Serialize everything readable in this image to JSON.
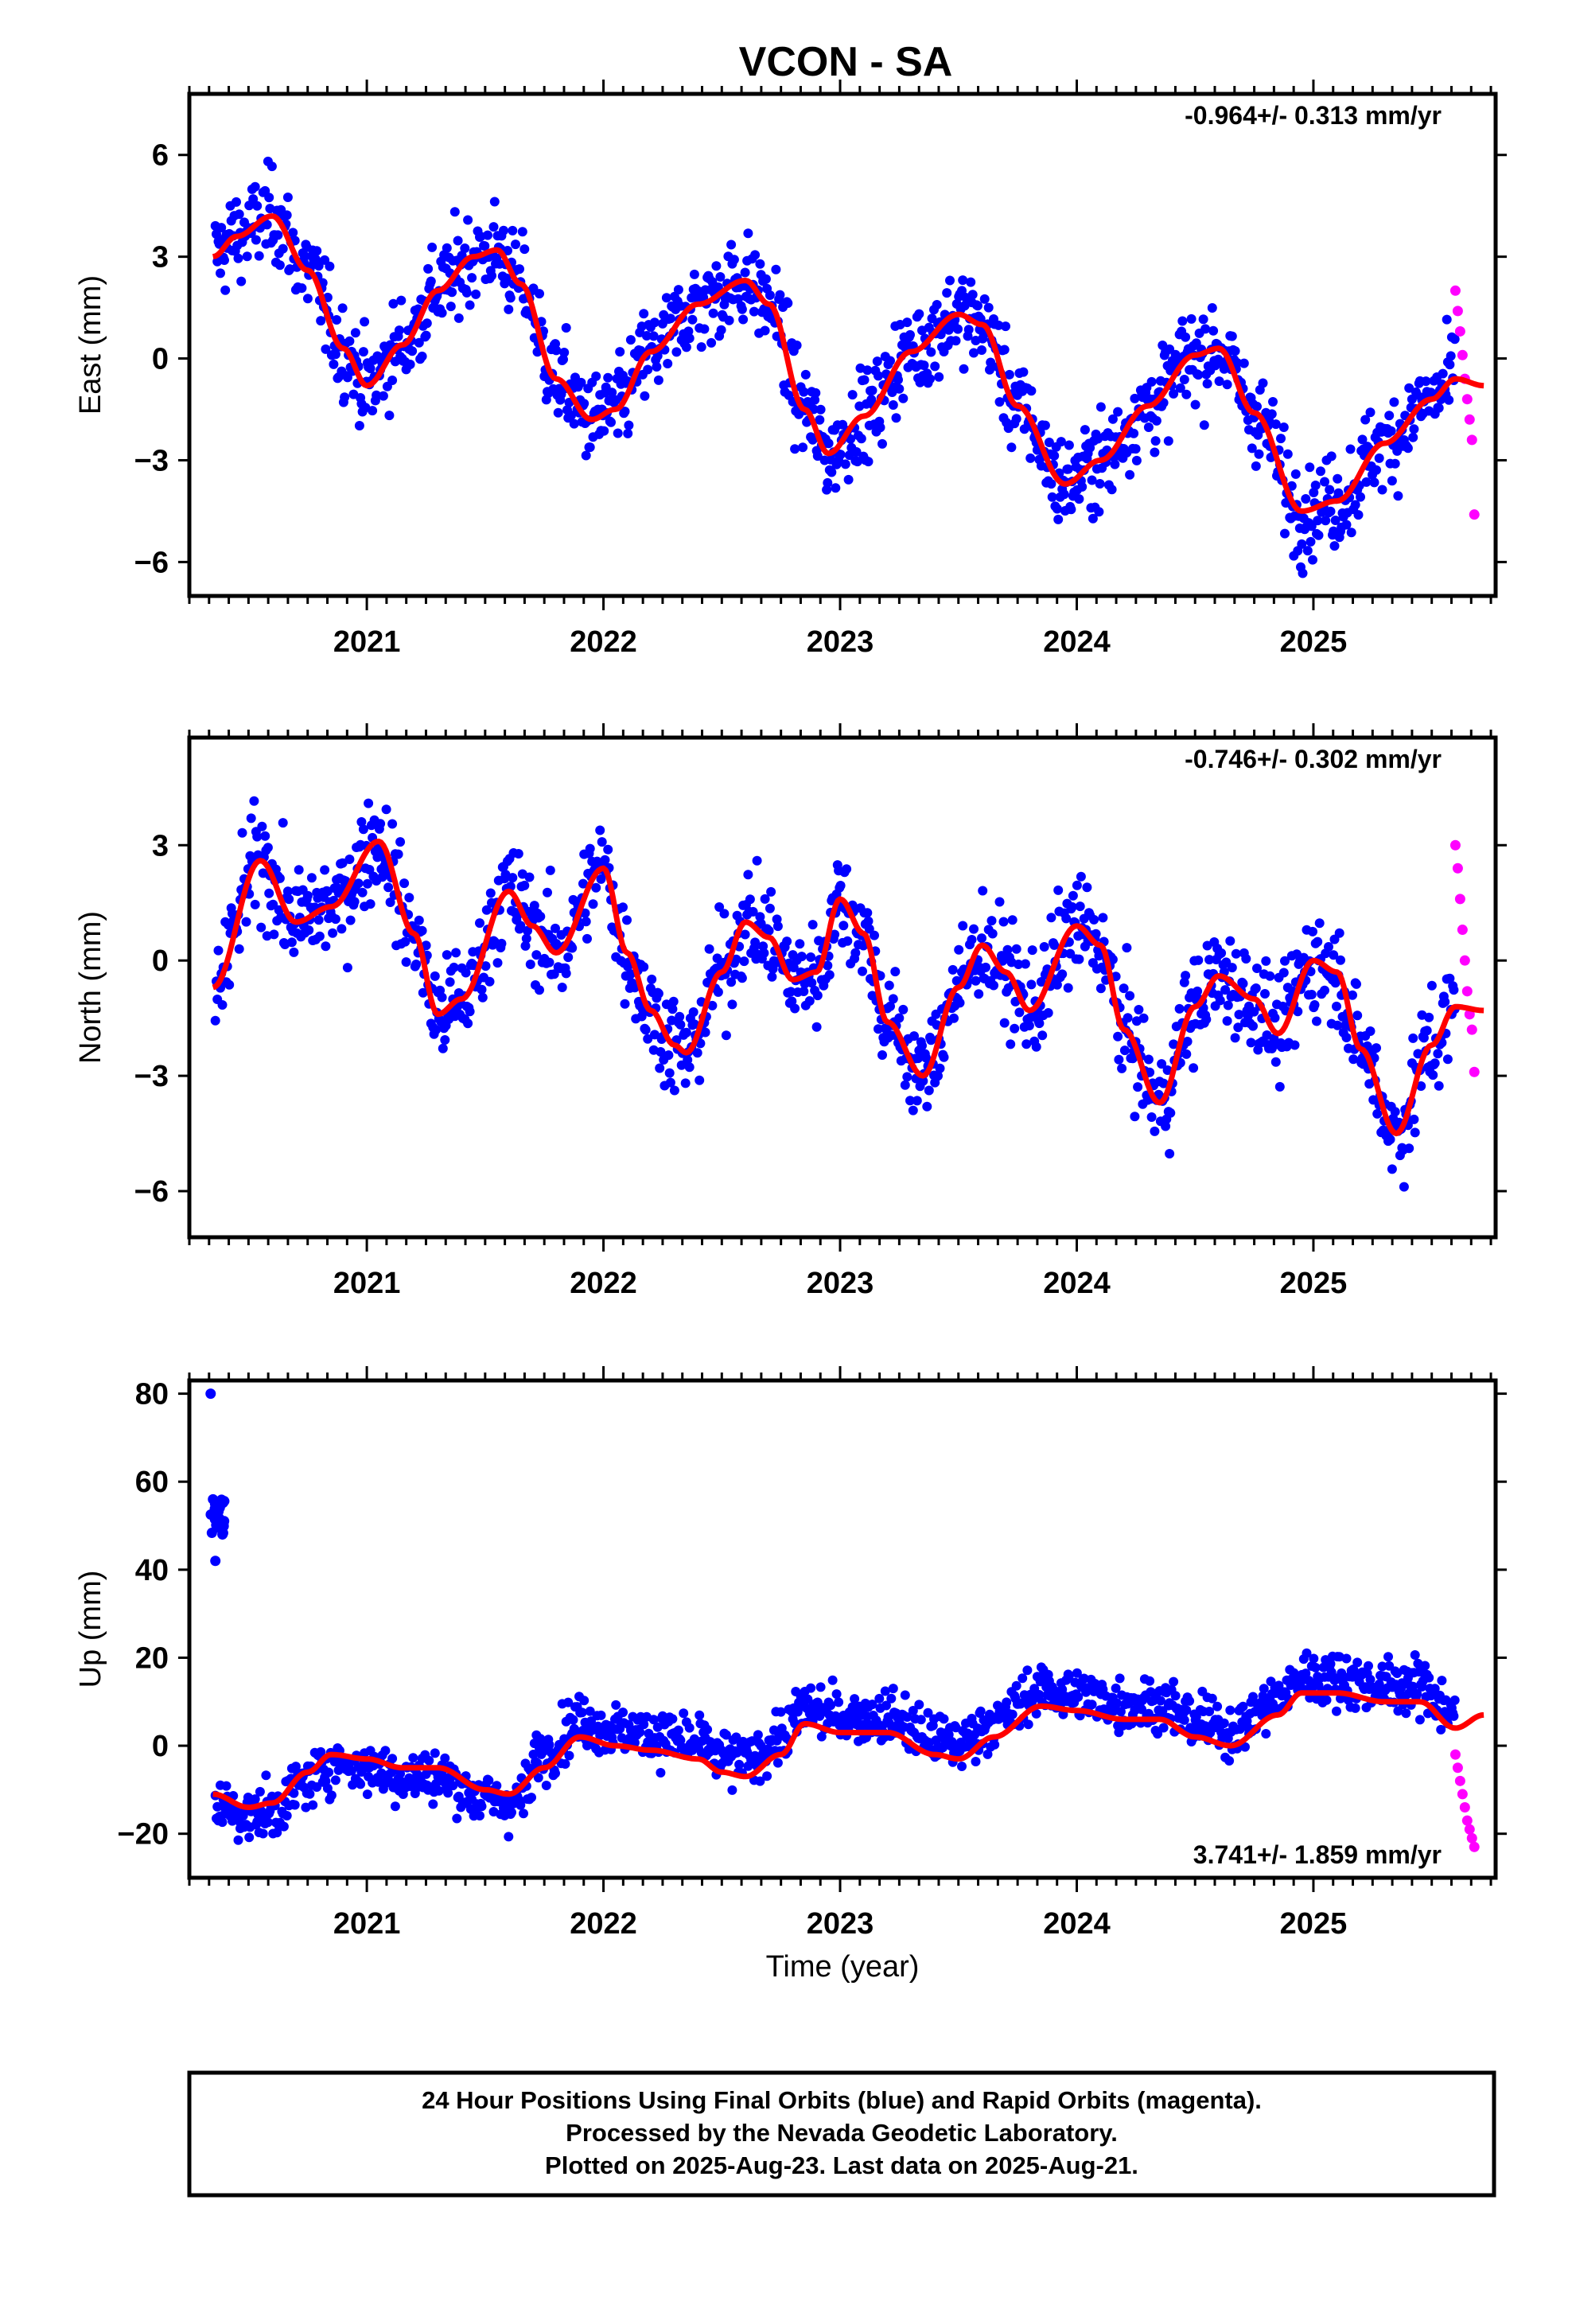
{
  "chart_data": {
    "type": "scatter",
    "title": "VCON - SA",
    "xlabel": "Time (year)",
    "x_ticks": [
      "2021",
      "2022",
      "2023",
      "2024",
      "2025"
    ],
    "x_range": [
      2020.25,
      2025.77
    ],
    "colors": {
      "final": "#0000ff",
      "rapid": "#ff00ff",
      "fit": "#ff0000"
    },
    "panels": [
      {
        "ylabel": "East (mm)",
        "ylim": [
          -7.0,
          7.8
        ],
        "yticks": [
          -6,
          -3,
          0,
          3,
          6
        ],
        "ytick_labels": [
          "−6",
          "−3",
          "0",
          "3",
          "6"
        ],
        "rate": "-0.964+/- 0.313 mm/yr",
        "rate_position": "top-right",
        "fit": {
          "x": [
            2020.35,
            2020.45,
            2020.6,
            2020.75,
            2020.9,
            2021.0,
            2021.15,
            2021.3,
            2021.45,
            2021.55,
            2021.65,
            2021.8,
            2021.95,
            2022.05,
            2022.2,
            2022.4,
            2022.6,
            2022.7,
            2022.85,
            2022.95,
            2023.1,
            2023.3,
            2023.5,
            2023.6,
            2023.75,
            2023.95,
            2024.1,
            2024.3,
            2024.5,
            2024.6,
            2024.75,
            2024.95,
            2025.1,
            2025.3,
            2025.5,
            2025.6,
            2025.72
          ],
          "y": [
            3.0,
            3.6,
            4.2,
            2.6,
            0.3,
            -0.8,
            0.4,
            2.0,
            3.0,
            3.2,
            2.2,
            -0.6,
            -1.8,
            -1.5,
            0.2,
            1.6,
            2.3,
            1.6,
            -1.5,
            -2.8,
            -1.7,
            0.2,
            1.3,
            1.0,
            -1.4,
            -3.7,
            -3.0,
            -1.4,
            0.1,
            0.3,
            -1.6,
            -4.5,
            -4.2,
            -2.5,
            -1.2,
            -0.6,
            -0.8
          ]
        },
        "rapid": {
          "x": [
            2025.6,
            2025.61,
            2025.62,
            2025.63,
            2025.64,
            2025.65,
            2025.66,
            2025.67,
            2025.68
          ],
          "y": [
            2.0,
            1.4,
            0.8,
            0.1,
            -0.6,
            -1.2,
            -1.8,
            -2.4,
            -4.6
          ]
        }
      },
      {
        "ylabel": "North (mm)",
        "ylim": [
          -7.2,
          5.8
        ],
        "yticks": [
          -6,
          -3,
          0,
          3
        ],
        "ytick_labels": [
          "−6",
          "−3",
          "0",
          "3"
        ],
        "rate": "-0.746+/- 0.302 mm/yr",
        "rate_position": "top-right",
        "fit": {
          "x": [
            2020.35,
            2020.55,
            2020.7,
            2020.85,
            2021.05,
            2021.2,
            2021.3,
            2021.4,
            2021.6,
            2021.7,
            2021.8,
            2022.0,
            2022.1,
            2022.2,
            2022.3,
            2022.35,
            2022.5,
            2022.6,
            2022.7,
            2022.8,
            2022.9,
            2023.0,
            2023.1,
            2023.2,
            2023.35,
            2023.5,
            2023.6,
            2023.7,
            2023.8,
            2024.0,
            2024.1,
            2024.2,
            2024.35,
            2024.5,
            2024.6,
            2024.75,
            2024.85,
            2025.0,
            2025.1,
            2025.2,
            2025.35,
            2025.5,
            2025.6,
            2025.72
          ],
          "y": [
            -0.7,
            2.6,
            1.0,
            1.4,
            3.1,
            0.7,
            -1.4,
            -1.0,
            1.8,
            0.9,
            0.2,
            2.4,
            0.2,
            -1.3,
            -2.2,
            -2.4,
            -0.3,
            1.0,
            0.6,
            -0.5,
            -0.3,
            1.6,
            0.7,
            -1.6,
            -3.0,
            -0.7,
            0.4,
            -0.3,
            -1.3,
            0.9,
            0.4,
            -1.8,
            -3.7,
            -1.2,
            -0.4,
            -1.0,
            -1.9,
            0.0,
            -0.3,
            -2.3,
            -4.5,
            -2.2,
            -1.2,
            -1.3
          ]
        },
        "rapid": {
          "x": [
            2025.6,
            2025.61,
            2025.62,
            2025.63,
            2025.64,
            2025.65,
            2025.66,
            2025.67,
            2025.68
          ],
          "y": [
            3.0,
            2.4,
            1.6,
            0.8,
            0.0,
            -0.8,
            -1.4,
            -1.8,
            -2.9
          ]
        }
      },
      {
        "ylabel": "Up (mm)",
        "ylim": [
          -30,
          83
        ],
        "yticks": [
          -20,
          0,
          20,
          40,
          60,
          80
        ],
        "ytick_labels": [
          "−20",
          "0",
          "20",
          "40",
          "60",
          "80"
        ],
        "rate": "3.741+/- 1.859 mm/yr",
        "rate_position": "bottom-right",
        "fit": {
          "x": [
            2020.35,
            2020.5,
            2020.6,
            2020.75,
            2020.85,
            2021.0,
            2021.15,
            2021.3,
            2021.5,
            2021.6,
            2021.75,
            2021.9,
            2022.05,
            2022.2,
            2022.4,
            2022.5,
            2022.6,
            2022.75,
            2022.85,
            2023.0,
            2023.2,
            2023.4,
            2023.5,
            2023.65,
            2023.85,
            2024.0,
            2024.2,
            2024.35,
            2024.5,
            2024.65,
            2024.85,
            2024.95,
            2025.1,
            2025.3,
            2025.45,
            2025.6,
            2025.72
          ],
          "y": [
            -11,
            -14,
            -13,
            -6,
            -2,
            -3,
            -5,
            -5,
            -10,
            -11,
            -5,
            2,
            0,
            -1,
            -3,
            -6,
            -7,
            -2,
            5,
            3,
            3,
            -2,
            -3,
            2,
            9,
            8,
            6,
            6,
            2,
            0,
            7,
            12,
            12,
            10,
            10,
            4,
            7
          ]
        },
        "rapid": {
          "x": [
            2025.6,
            2025.61,
            2025.62,
            2025.63,
            2025.64,
            2025.65,
            2025.66,
            2025.67,
            2025.68
          ],
          "y": [
            -2,
            -5,
            -8,
            -11,
            -14,
            -17,
            -19,
            -21,
            -23
          ]
        },
        "outliers": {
          "x": [
            2020.34,
            2020.35,
            2020.36,
            2020.37,
            2020.38,
            2020.39,
            2020.36
          ],
          "y": [
            80,
            56,
            54,
            52,
            50,
            48,
            42
          ]
        }
      }
    ],
    "final_scatter_note": ""
  },
  "footer": {
    "line1": "24 Hour Positions Using Final Orbits (blue) and Rapid Orbits (magenta).",
    "line2": "Processed by the Nevada Geodetic Laboratory.",
    "line3": "Plotted on 2025-Aug-23. Last data on 2025-Aug-21."
  }
}
